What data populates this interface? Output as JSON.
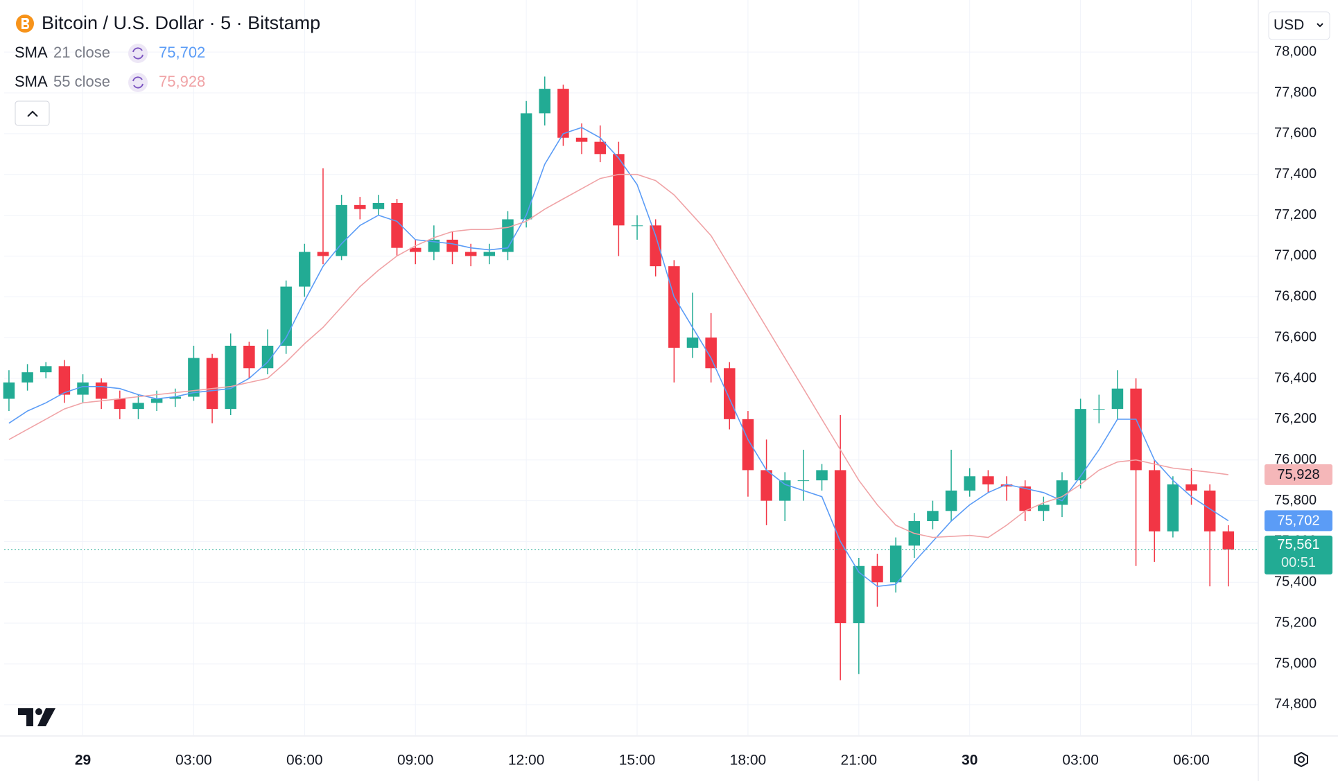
{
  "chart_data": {
    "type": "candlestick",
    "title": "Bitcoin / U.S. Dollar · 5 · Bitstamp",
    "currency": "USD",
    "x": [
      -2,
      -1.5,
      -1,
      -0.5,
      0,
      0.5,
      1,
      1.5,
      2,
      2.5,
      3,
      3.5,
      4,
      4.5,
      5,
      5.5,
      6,
      6.5,
      7,
      7.5,
      8,
      8.5,
      9,
      9.5,
      10,
      10.5,
      11,
      11.5,
      12,
      12.5,
      13,
      13.5,
      14,
      14.5,
      15,
      15.5,
      16,
      16.5,
      17,
      17.5,
      18,
      18.5,
      19,
      19.5,
      20,
      20.5,
      21,
      21.5,
      22,
      22.5,
      23,
      23.5,
      24,
      24.5,
      25,
      25.5,
      26,
      26.5,
      27,
      27.5,
      28,
      28.5,
      29,
      29.5,
      30,
      30.5,
      31
    ],
    "open": [
      76300,
      76380,
      76430,
      76460,
      76320,
      76380,
      76300,
      76250,
      76280,
      76300,
      76310,
      76500,
      76250,
      76560,
      76450,
      76560,
      76850,
      77020,
      77000,
      77250,
      77230,
      77260,
      77040,
      77020,
      77080,
      77020,
      77000,
      77020,
      77180,
      77700,
      77820,
      77580,
      77560,
      77500,
      77150,
      77150,
      76950,
      76550,
      76600,
      76450,
      76200,
      75950,
      75800,
      75900,
      75900,
      75950,
      75200,
      75480,
      75400,
      75580,
      75700,
      75750,
      75850,
      75920,
      75880,
      75870,
      75750,
      75780,
      75900,
      76250,
      76250,
      76350,
      75950,
      75650,
      75880,
      75850,
      75650
    ],
    "high": [
      76440,
      76470,
      76480,
      76490,
      76420,
      76400,
      76340,
      76320,
      76340,
      76350,
      76560,
      76520,
      76620,
      76580,
      76640,
      76880,
      77060,
      77430,
      77300,
      77290,
      77300,
      77280,
      77080,
      77150,
      77120,
      77060,
      77060,
      77220,
      77760,
      77880,
      77840,
      77650,
      77640,
      77560,
      77200,
      77180,
      76980,
      76820,
      76720,
      76480,
      76240,
      76100,
      75940,
      76050,
      75980,
      76220,
      75520,
      75540,
      75620,
      75740,
      75800,
      76050,
      75960,
      75950,
      75920,
      75900,
      75820,
      75940,
      76300,
      76320,
      76440,
      76400,
      76000,
      75920,
      75960,
      75880,
      75680
    ],
    "low": [
      76240,
      76340,
      76400,
      76280,
      76280,
      76250,
      76200,
      76200,
      76240,
      76260,
      76290,
      76180,
      76220,
      76400,
      76420,
      76520,
      76800,
      76960,
      76980,
      77180,
      77200,
      77000,
      76960,
      76980,
      76960,
      76950,
      76960,
      76980,
      77140,
      77640,
      77540,
      77500,
      77460,
      77000,
      77080,
      76900,
      76380,
      76500,
      76380,
      76150,
      75820,
      75680,
      75700,
      75800,
      75850,
      74920,
      74950,
      75280,
      75350,
      75520,
      75660,
      75700,
      75820,
      75840,
      75800,
      75700,
      75700,
      75720,
      75860,
      76180,
      76200,
      75480,
      75500,
      75620,
      75780,
      75380,
      75380
    ],
    "close": [
      76380,
      76430,
      76460,
      76320,
      76380,
      76300,
      76250,
      76280,
      76300,
      76310,
      76500,
      76250,
      76560,
      76450,
      76560,
      76850,
      77020,
      77000,
      77250,
      77230,
      77260,
      77040,
      77020,
      77080,
      77020,
      77000,
      77020,
      77180,
      77700,
      77820,
      77580,
      77560,
      77500,
      77150,
      77150,
      76950,
      76550,
      76600,
      76450,
      76200,
      75950,
      75800,
      75900,
      75900,
      75950,
      75200,
      75480,
      75400,
      75580,
      75700,
      75750,
      75850,
      75920,
      75880,
      75870,
      75750,
      75780,
      75900,
      76250,
      76250,
      76350,
      75950,
      75650,
      75880,
      75850,
      75650,
      75561
    ],
    "last_price_label": "75,561",
    "countdown": "00:51",
    "up_color": "#22ab94",
    "down_color": "#f23645",
    "indicators": [
      {
        "name": "SMA",
        "params": "21 close",
        "color": "#5b9cf6",
        "last_label": "75,702",
        "values": [
          76180,
          76240,
          76280,
          76330,
          76360,
          76360,
          76350,
          76320,
          76300,
          76310,
          76330,
          76340,
          76350,
          76400,
          76480,
          76600,
          76780,
          76950,
          77060,
          77150,
          77200,
          77170,
          77080,
          77070,
          77060,
          77040,
          77030,
          77040,
          77200,
          77450,
          77600,
          77630,
          77580,
          77480,
          77350,
          77100,
          76800,
          76650,
          76500,
          76300,
          76100,
          75950,
          75880,
          75850,
          75820,
          75600,
          75450,
          75380,
          75390,
          75500,
          75600,
          75700,
          75780,
          75840,
          75880,
          75860,
          75840,
          75800,
          75920,
          76050,
          76200,
          76200,
          76000,
          75900,
          75820,
          75760,
          75702
        ]
      },
      {
        "name": "SMA",
        "params": "55 close",
        "color": "#f0a3a6",
        "last_label": "75,928",
        "values": [
          76100,
          76150,
          76200,
          76250,
          76280,
          76290,
          76300,
          76310,
          76320,
          76330,
          76340,
          76350,
          76360,
          76380,
          76400,
          76480,
          76570,
          76650,
          76750,
          76850,
          76930,
          77000,
          77050,
          77090,
          77120,
          77130,
          77130,
          77140,
          77170,
          77230,
          77280,
          77330,
          77380,
          77400,
          77400,
          77370,
          77300,
          77200,
          77100,
          76950,
          76800,
          76650,
          76500,
          76350,
          76200,
          76050,
          75900,
          75780,
          75680,
          75640,
          75620,
          75625,
          75630,
          75620,
          75680,
          75750,
          75790,
          75820,
          75880,
          75950,
          75990,
          76000,
          75980,
          75960,
          75950,
          75940,
          75928
        ]
      }
    ],
    "xlim": [
      -2.13,
      31.81
    ],
    "xticks": [
      {
        "value": 0,
        "label": "29"
      },
      {
        "value": 3,
        "label": "03:00"
      },
      {
        "value": 6,
        "label": "06:00"
      },
      {
        "value": 9,
        "label": "09:00"
      },
      {
        "value": 12,
        "label": "12:00"
      },
      {
        "value": 15,
        "label": "15:00"
      },
      {
        "value": 18,
        "label": "18:00"
      },
      {
        "value": 21,
        "label": "21:00"
      },
      {
        "value": 24,
        "label": "30"
      },
      {
        "value": 27,
        "label": "03:00"
      },
      {
        "value": 30,
        "label": "06:00"
      }
    ],
    "ylim": [
      74650,
      78235
    ],
    "yticks": [
      {
        "value": 74800,
        "label": "74,800"
      },
      {
        "value": 75000,
        "label": "75,000"
      },
      {
        "value": 75200,
        "label": "75,200"
      },
      {
        "value": 75400,
        "label": "75,400"
      },
      {
        "value": 75600,
        "label": "75,600"
      },
      {
        "value": 75800,
        "label": "75,800"
      },
      {
        "value": 76000,
        "label": "76,000"
      },
      {
        "value": 76200,
        "label": "76,200"
      },
      {
        "value": 76400,
        "label": "76,400"
      },
      {
        "value": 76600,
        "label": "76,600"
      },
      {
        "value": 76800,
        "label": "76,800"
      },
      {
        "value": 77000,
        "label": "77,000"
      },
      {
        "value": 77200,
        "label": "77,200"
      },
      {
        "value": 77400,
        "label": "77,400"
      },
      {
        "value": 77600,
        "label": "77,600"
      },
      {
        "value": 77800,
        "label": "77,800"
      },
      {
        "value": 78000,
        "label": "78,000"
      }
    ],
    "grid": true
  }
}
